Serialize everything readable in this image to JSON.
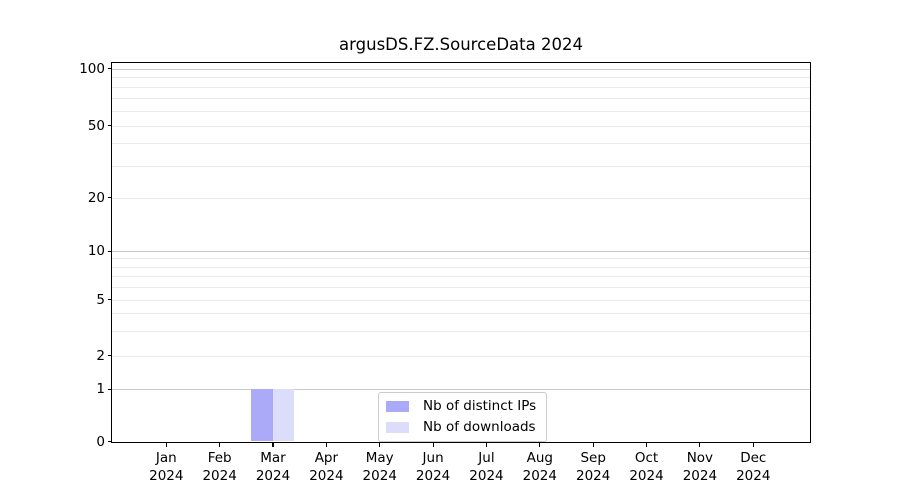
{
  "figure": {
    "title": "argusDS.FZ.SourceData 2024"
  },
  "chart_data": {
    "type": "bar",
    "title": "argusDS.FZ.SourceData 2024",
    "categories": [
      "Jan 2024",
      "Feb 2024",
      "Mar 2024",
      "Apr 2024",
      "May 2024",
      "Jun 2024",
      "Jul 2024",
      "Aug 2024",
      "Sep 2024",
      "Oct 2024",
      "Nov 2024",
      "Dec 2024"
    ],
    "series": [
      {
        "name": "Nb of distinct IPs",
        "color": "#aaaaf8",
        "values": [
          0,
          0,
          1,
          0,
          0,
          0,
          0,
          0,
          0,
          0,
          0,
          0
        ]
      },
      {
        "name": "Nb of downloads",
        "color": "#dcdcfb",
        "values": [
          0,
          0,
          1,
          0,
          0,
          0,
          0,
          0,
          0,
          0,
          0,
          0
        ]
      }
    ],
    "xlabel": "",
    "ylabel": "",
    "yscale": "symlog",
    "ylim": [
      0,
      108
    ],
    "ytick_labels": [
      "0",
      "1",
      "2",
      "5",
      "10",
      "20",
      "50",
      "100"
    ],
    "grid": "horizontal",
    "legend": {
      "entries": [
        "Nb of distinct IPs",
        "Nb of downloads"
      ],
      "position": "lower center"
    },
    "colors": {
      "axis": "#000000",
      "grid_major": "#c9c9c9",
      "grid_minor": "#eaeaea",
      "background": "#ffffff",
      "legend_border": "#cccccc"
    }
  }
}
